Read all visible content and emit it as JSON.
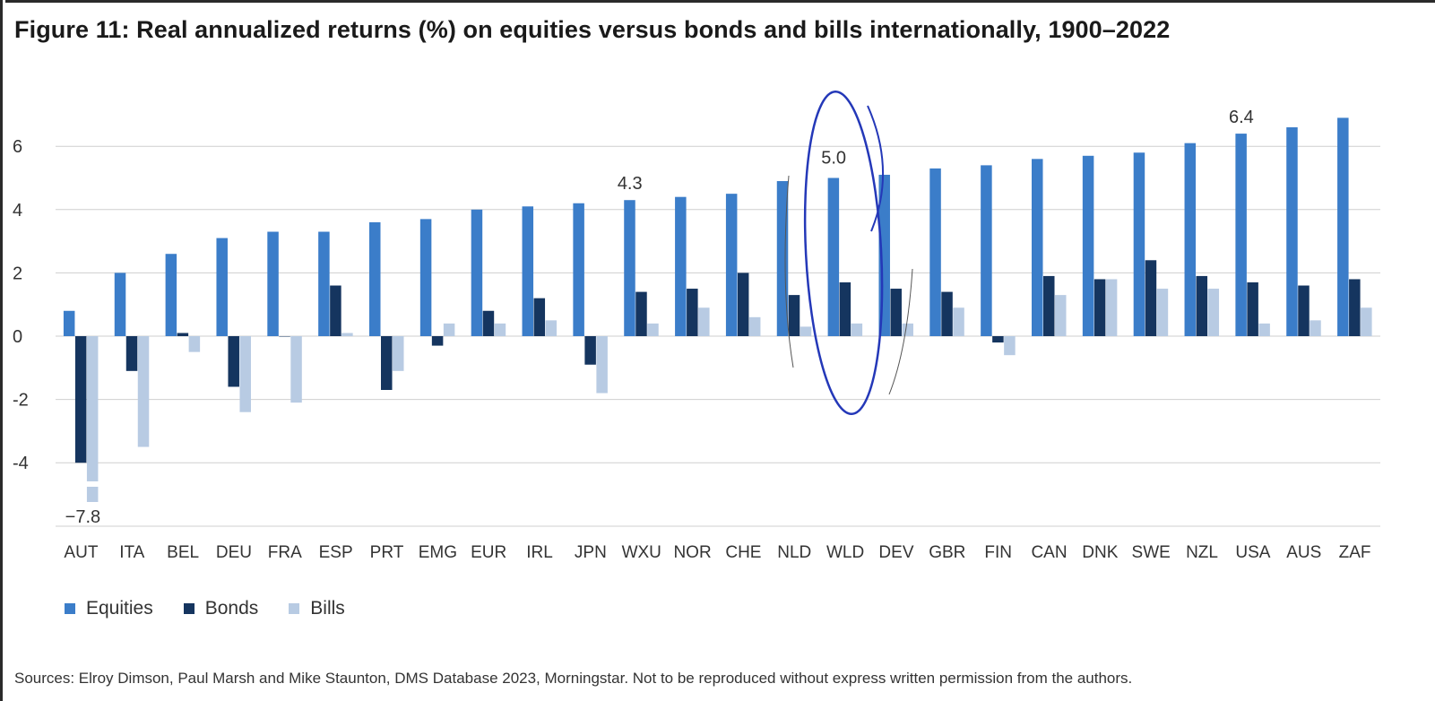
{
  "title": "Figure 11: Real annualized returns (%) on equities versus bonds and bills internationally, 1900–2022",
  "source": "Sources: Elroy Dimson, Paul Marsh and Mike Staunton, DMS Database 2023, Morningstar. Not to be reproduced without express written permission from the authors.",
  "colors": {
    "equities": "#3b7dc9",
    "bonds": "#15355f",
    "bills": "#b8cbe3",
    "grid": "#cfcfcf",
    "annotation": "#2438b8"
  },
  "chart_data": {
    "type": "bar",
    "categories": [
      "AUT",
      "ITA",
      "BEL",
      "DEU",
      "FRA",
      "ESP",
      "PRT",
      "EMG",
      "EUR",
      "IRL",
      "JPN",
      "WXU",
      "NOR",
      "CHE",
      "NLD",
      "WLD",
      "DEV",
      "GBR",
      "FIN",
      "CAN",
      "DNK",
      "SWE",
      "NZL",
      "USA",
      "AUS",
      "ZAF"
    ],
    "series": [
      {
        "name": "Equities",
        "values": [
          0.8,
          2.0,
          2.6,
          3.1,
          3.3,
          3.3,
          3.6,
          3.7,
          4.0,
          4.1,
          4.2,
          4.3,
          4.4,
          4.5,
          4.9,
          5.0,
          5.1,
          5.3,
          5.4,
          5.6,
          5.7,
          5.8,
          6.1,
          6.4,
          6.6,
          6.9
        ]
      },
      {
        "name": "Bonds",
        "values": [
          -4.0,
          -1.1,
          0.1,
          -1.6,
          0.0,
          1.6,
          -1.7,
          -0.3,
          0.8,
          1.2,
          -0.9,
          1.4,
          1.5,
          2.0,
          1.3,
          1.7,
          1.5,
          1.4,
          -0.2,
          1.9,
          1.8,
          2.4,
          1.9,
          1.7,
          1.6,
          1.8
        ]
      },
      {
        "name": "Bills",
        "values": [
          -7.8,
          -3.5,
          -0.5,
          -2.4,
          -2.1,
          0.1,
          -1.1,
          0.4,
          0.4,
          0.5,
          -1.8,
          0.4,
          0.9,
          0.6,
          0.3,
          0.4,
          0.4,
          0.9,
          -0.6,
          1.3,
          1.8,
          1.5,
          1.5,
          0.4,
          0.5,
          0.9
        ]
      }
    ],
    "yticks": [
      -4,
      -2,
      0,
      2,
      4,
      6
    ],
    "ytick_labels": [
      "-4",
      "-2",
      "0",
      "2",
      "4",
      "6"
    ],
    "ylim": [
      -5.6,
      7.6
    ],
    "axis_break": "bills bar for AUT truncated below -4.6 (value -7.8)",
    "annotations": [
      {
        "category": "AUT",
        "text": "−7.8"
      },
      {
        "category": "WXU",
        "text": "4.3"
      },
      {
        "category": "WLD",
        "text": "5.0"
      },
      {
        "category": "USA",
        "text": "6.4"
      }
    ],
    "grid": true,
    "legend": "bottom-left",
    "highlight": "WLD circled by hand"
  }
}
